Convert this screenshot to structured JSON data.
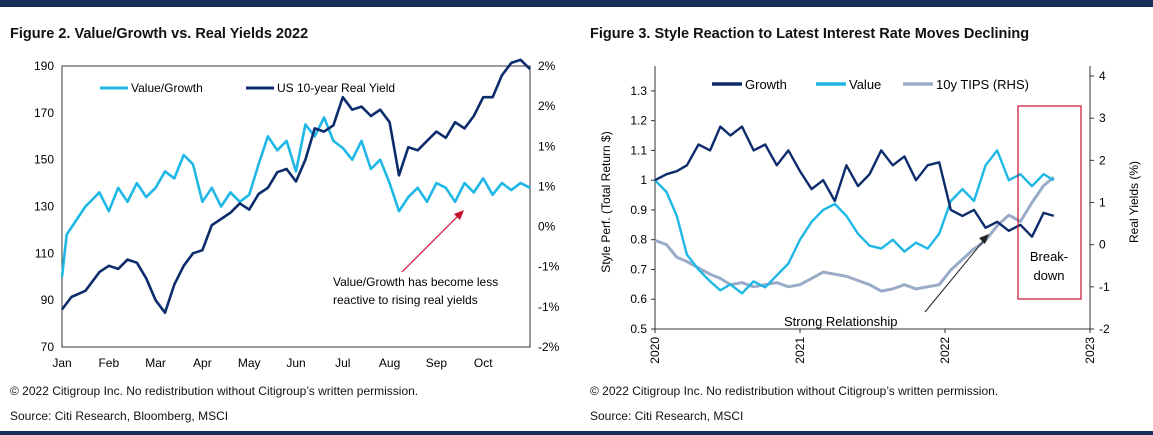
{
  "footer_left": {
    "copyright": "© 2022 Citigroup Inc. No redistribution without Citigroup’s written permission.",
    "source": "Source: Citi Research, Bloomberg, MSCI"
  },
  "footer_right": {
    "copyright": "© 2022 Citigroup Inc. No redistribution without Citigroup’s written permission.",
    "source": "Source: Citi Research, MSCI"
  },
  "colors": {
    "dark_navy": "#0d2c6c",
    "light_blue": "#1fb8e6",
    "grey_blue": "#9aabc8",
    "box_red": "#c8102e"
  },
  "chart_data": [
    {
      "type": "line",
      "title": "Figure 2. Value/Growth vs. Real Yields 2022",
      "x_ticks": [
        "Jan",
        "Feb",
        "Mar",
        "Apr",
        "May",
        "Jun",
        "Jul",
        "Aug",
        "Sep",
        "Oct"
      ],
      "y_left_ticks": [
        "190",
        "170",
        "150",
        "130",
        "110",
        "90",
        "70"
      ],
      "y_right_ticks": [
        "2%",
        "2%",
        "1%",
        "1%",
        "0%",
        "-1%",
        "-1%",
        "-2%"
      ],
      "ylim_left": [
        70,
        190
      ],
      "ylim_right": [
        -2.5,
        2.0
      ],
      "legend_position": "top",
      "series": [
        {
          "name": "Value/Growth",
          "axis": "left",
          "color": "#1fb8e6",
          "x": [
            0,
            0.1,
            0.3,
            0.5,
            0.8,
            1.0,
            1.2,
            1.4,
            1.6,
            1.8,
            2.0,
            2.2,
            2.4,
            2.6,
            2.8,
            3.0,
            3.2,
            3.4,
            3.6,
            3.8,
            4.0,
            4.2,
            4.4,
            4.6,
            4.8,
            5.0,
            5.2,
            5.4,
            5.6,
            5.8,
            6.0,
            6.2,
            6.4,
            6.6,
            6.8,
            7.0,
            7.2,
            7.4,
            7.6,
            7.8,
            8.0,
            8.2,
            8.4,
            8.6,
            8.8,
            9.0,
            9.2,
            9.4,
            9.6,
            9.8,
            10.0
          ],
          "values": [
            100,
            118,
            124,
            130,
            136,
            128,
            138,
            132,
            140,
            134,
            138,
            145,
            142,
            152,
            148,
            132,
            138,
            130,
            136,
            132,
            135,
            148,
            160,
            154,
            158,
            145,
            165,
            160,
            168,
            158,
            155,
            150,
            158,
            146,
            150,
            140,
            128,
            134,
            138,
            132,
            140,
            138,
            132,
            140,
            136,
            142,
            135,
            140,
            137,
            140,
            138
          ]
        },
        {
          "name": "US 10-year Real Yield",
          "axis": "right",
          "color": "#0d2c6c",
          "x": [
            0,
            0.2,
            0.5,
            0.8,
            1.0,
            1.2,
            1.4,
            1.6,
            1.8,
            2.0,
            2.2,
            2.4,
            2.6,
            2.8,
            3.0,
            3.2,
            3.4,
            3.6,
            3.8,
            4.0,
            4.2,
            4.4,
            4.6,
            4.8,
            5.0,
            5.2,
            5.4,
            5.6,
            5.8,
            6.0,
            6.2,
            6.4,
            6.6,
            6.8,
            7.0,
            7.2,
            7.4,
            7.6,
            7.8,
            8.0,
            8.2,
            8.4,
            8.6,
            8.8,
            9.0,
            9.2,
            9.4,
            9.6,
            9.8,
            10.0
          ],
          "values": [
            -1.9,
            -1.7,
            -1.6,
            -1.3,
            -1.2,
            -1.25,
            -1.1,
            -1.15,
            -1.4,
            -1.75,
            -1.95,
            -1.5,
            -1.2,
            -1.0,
            -0.95,
            -0.55,
            -0.45,
            -0.35,
            -0.2,
            -0.3,
            -0.05,
            0.05,
            0.3,
            0.35,
            0.15,
            0.5,
            1.0,
            0.95,
            1.05,
            1.5,
            1.3,
            1.35,
            1.2,
            1.3,
            1.1,
            0.25,
            0.7,
            0.65,
            0.8,
            0.95,
            0.85,
            1.1,
            1.0,
            1.2,
            1.5,
            1.5,
            1.85,
            2.05,
            2.1,
            1.95
          ]
        }
      ],
      "annotation": {
        "lines": [
          "Value/Growth has become less",
          "reactive to rising real yields"
        ]
      }
    },
    {
      "type": "line",
      "title": "Figure 3. Style Reaction to Latest Interest Rate Moves Declining",
      "x_ticks": [
        "2020",
        "2021",
        "2022",
        "2023"
      ],
      "ylabel": "Style Perf. (Total Return $)",
      "ylabel_right": "Real Yields (%)",
      "y_left_ticks": [
        "1.3",
        "1.2",
        "1.1",
        "1",
        "0.9",
        "0.8",
        "0.7",
        "0.6",
        "0.5"
      ],
      "y_right_ticks": [
        "4",
        "3",
        "2",
        "1",
        "0",
        "-1",
        "-2"
      ],
      "ylim_left": [
        0.5,
        1.35
      ],
      "ylim_right": [
        -2,
        4
      ],
      "xlim": [
        2020,
        2023
      ],
      "legend_position": "top",
      "series": [
        {
          "name": "Growth",
          "axis": "left",
          "color": "#0d2c6c",
          "x": [
            2020.0,
            2020.08,
            2020.15,
            2020.22,
            2020.3,
            2020.38,
            2020.45,
            2020.52,
            2020.6,
            2020.68,
            2020.76,
            2020.84,
            2020.92,
            2021.0,
            2021.08,
            2021.16,
            2021.24,
            2021.32,
            2021.4,
            2021.48,
            2021.56,
            2021.64,
            2021.72,
            2021.8,
            2021.88,
            2021.96,
            2022.04,
            2022.12,
            2022.2,
            2022.28,
            2022.36,
            2022.44,
            2022.52,
            2022.6,
            2022.68,
            2022.75
          ],
          "values": [
            1.0,
            1.02,
            1.03,
            1.05,
            1.12,
            1.1,
            1.18,
            1.15,
            1.18,
            1.1,
            1.12,
            1.05,
            1.1,
            1.03,
            0.97,
            1.0,
            0.93,
            1.05,
            0.98,
            1.02,
            1.1,
            1.05,
            1.08,
            1.0,
            1.05,
            1.06,
            0.9,
            0.88,
            0.9,
            0.84,
            0.86,
            0.83,
            0.85,
            0.81,
            0.89,
            0.88
          ]
        },
        {
          "name": "Value",
          "axis": "left",
          "color": "#1fb8e6",
          "x": [
            2020.0,
            2020.08,
            2020.15,
            2020.22,
            2020.3,
            2020.38,
            2020.45,
            2020.52,
            2020.6,
            2020.68,
            2020.76,
            2020.84,
            2020.92,
            2021.0,
            2021.08,
            2021.16,
            2021.24,
            2021.32,
            2021.4,
            2021.48,
            2021.56,
            2021.64,
            2021.72,
            2021.8,
            2021.88,
            2021.96,
            2022.04,
            2022.12,
            2022.2,
            2022.28,
            2022.36,
            2022.44,
            2022.52,
            2022.6,
            2022.68,
            2022.75
          ],
          "values": [
            1.0,
            0.96,
            0.88,
            0.75,
            0.7,
            0.66,
            0.63,
            0.65,
            0.62,
            0.66,
            0.64,
            0.68,
            0.72,
            0.8,
            0.86,
            0.9,
            0.92,
            0.88,
            0.82,
            0.78,
            0.77,
            0.8,
            0.76,
            0.79,
            0.77,
            0.82,
            0.93,
            0.97,
            0.93,
            1.05,
            1.1,
            1.0,
            1.02,
            0.98,
            1.02,
            1.0
          ]
        },
        {
          "name": "10y TIPS (RHS)",
          "axis": "right",
          "color": "#9aabc8",
          "x": [
            2020.0,
            2020.08,
            2020.15,
            2020.22,
            2020.3,
            2020.38,
            2020.45,
            2020.52,
            2020.6,
            2020.68,
            2020.76,
            2020.84,
            2020.92,
            2021.0,
            2021.08,
            2021.16,
            2021.24,
            2021.32,
            2021.4,
            2021.48,
            2021.56,
            2021.64,
            2021.72,
            2021.8,
            2021.88,
            2021.96,
            2022.04,
            2022.12,
            2022.2,
            2022.28,
            2022.36,
            2022.44,
            2022.52,
            2022.6,
            2022.68,
            2022.75
          ],
          "values": [
            0.1,
            0.0,
            -0.3,
            -0.4,
            -0.55,
            -0.7,
            -0.8,
            -0.95,
            -0.9,
            -1.0,
            -0.95,
            -0.9,
            -1.0,
            -0.95,
            -0.8,
            -0.65,
            -0.7,
            -0.75,
            -0.85,
            -0.95,
            -1.1,
            -1.05,
            -0.95,
            -1.05,
            -1.0,
            -0.95,
            -0.6,
            -0.35,
            -0.1,
            0.1,
            0.45,
            0.7,
            0.55,
            1.0,
            1.4,
            1.6
          ]
        }
      ],
      "annotations": [
        {
          "text": "Strong Relationship"
        },
        {
          "lines": [
            "Break-",
            "down"
          ]
        }
      ]
    }
  ]
}
